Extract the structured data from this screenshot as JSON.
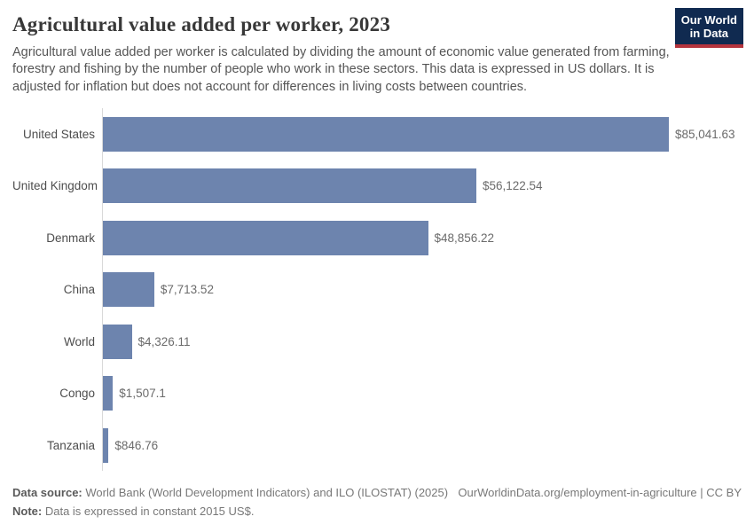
{
  "header": {
    "title": "Agricultural value added per worker, 2023",
    "subtitle": "Agricultural value added per worker is calculated by dividing the amount of economic value generated from farming, forestry and fishing by the number of people who work in these sectors. This data is expressed in US dollars. It is adjusted for inflation but does not account for differences in living costs between countries.",
    "logo": {
      "line1": "Our World",
      "line2": "in Data",
      "bg_color": "#102a50",
      "stripe_color": "#b5343d"
    }
  },
  "chart_data": {
    "type": "bar",
    "orientation": "horizontal",
    "title": "Agricultural value added per worker, 2023",
    "categories": [
      "United States",
      "United Kingdom",
      "Denmark",
      "China",
      "World",
      "Congo",
      "Tanzania"
    ],
    "values": [
      85041.63,
      56122.54,
      48856.22,
      7713.52,
      4326.11,
      1507.1,
      846.76
    ],
    "value_labels": [
      "$85,041.63",
      "$56,122.54",
      "$48,856.22",
      "$7,713.52",
      "$4,326.11",
      "$1,507.1",
      "$846.76"
    ],
    "unit": "constant 2015 US$",
    "xlim": [
      0,
      85041.63
    ],
    "grid": false,
    "legend": "none",
    "bar_color": "#6d84ae",
    "axis_line_color": "#d9d9d9"
  },
  "footer": {
    "source_label": "Data source:",
    "source_text": "World Bank (World Development Indicators) and ILO (ILOSTAT) (2025)",
    "note_label": "Note:",
    "note_text": "Data is expressed in constant 2015 US$.",
    "url": "OurWorldinData.org/employment-in-agriculture | CC BY"
  }
}
